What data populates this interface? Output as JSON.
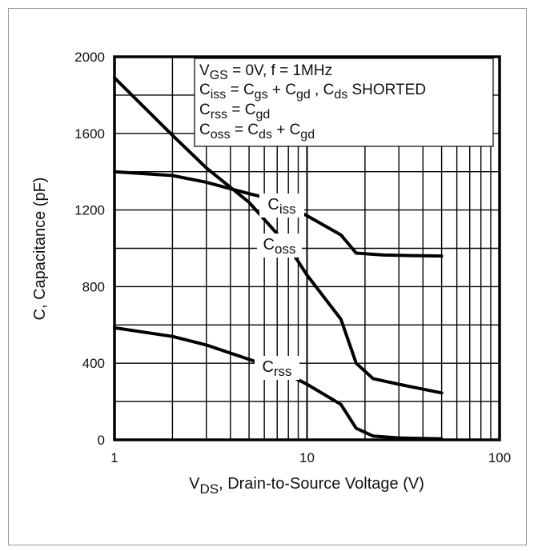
{
  "chart_data": {
    "type": "line",
    "x_scale": "log",
    "xlim": [
      1,
      100
    ],
    "ylim": [
      0,
      2000
    ],
    "x_ticks": [
      "1",
      "10",
      "100"
    ],
    "y_ticks": [
      "0",
      "400",
      "800",
      "1200",
      "1600",
      "2000"
    ],
    "xlabel_main": "V",
    "xlabel_sub": "DS",
    "xlabel_rest": ", Drain-to-Source Voltage (V)",
    "ylabel": "C, Capacitance (pF)",
    "grid": true,
    "legend_position": "top-right",
    "legend_lines": [
      [
        {
          "t": "V"
        },
        {
          "t": "GS",
          "sub": true
        },
        {
          "t": " = 0V,       f = 1MHz"
        }
      ],
      [
        {
          "t": "C"
        },
        {
          "t": "iss",
          "sub": true
        },
        {
          "t": " = C"
        },
        {
          "t": "gs",
          "sub": true
        },
        {
          "t": " + C"
        },
        {
          "t": "gd",
          "sub": true
        },
        {
          "t": " ,  C"
        },
        {
          "t": "ds",
          "sub": true
        },
        {
          "t": "  SHORTED"
        }
      ],
      [
        {
          "t": "C"
        },
        {
          "t": "rss",
          "sub": true
        },
        {
          "t": " = C"
        },
        {
          "t": "gd",
          "sub": true
        }
      ],
      [
        {
          "t": "C"
        },
        {
          "t": "oss",
          "sub": true
        },
        {
          "t": " = C"
        },
        {
          "t": "ds",
          "sub": true
        },
        {
          "t": " + C"
        },
        {
          "t": "gd",
          "sub": true
        }
      ]
    ],
    "series": [
      {
        "name": "Ciss",
        "label_main": "C",
        "label_sub": "iss",
        "x": [
          1,
          2,
          3,
          5,
          7,
          10,
          15,
          18,
          25,
          35,
          50
        ],
        "y": [
          1400,
          1380,
          1345,
          1285,
          1250,
          1170,
          1070,
          975,
          965,
          962,
          960
        ]
      },
      {
        "name": "Coss",
        "label_main": "C",
        "label_sub": "oss",
        "x": [
          1,
          2,
          3,
          5,
          8,
          10,
          15,
          18,
          22,
          30,
          50
        ],
        "y": [
          1890,
          1590,
          1420,
          1240,
          1010,
          860,
          630,
          400,
          320,
          290,
          245
        ]
      },
      {
        "name": "Crss",
        "label_main": "C",
        "label_sub": "rss",
        "x": [
          1,
          2,
          3,
          5,
          7,
          10,
          15,
          18,
          22,
          30,
          50
        ],
        "y": [
          585,
          540,
          495,
          420,
          370,
          290,
          185,
          60,
          20,
          10,
          5
        ]
      }
    ]
  }
}
